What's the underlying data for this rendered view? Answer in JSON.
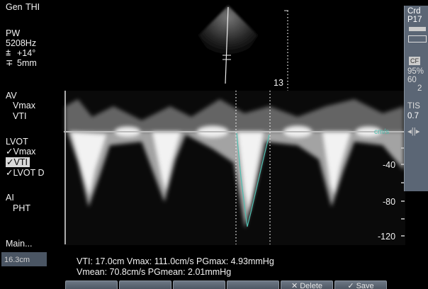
{
  "header": {
    "mode": "Gen",
    "harmonic": "THI"
  },
  "settings": {
    "mode": "PW",
    "frequency": "5208Hz",
    "angle": "+14°",
    "gate": "5mm"
  },
  "sector": {
    "depth_marker": "13"
  },
  "menu": {
    "groups": [
      {
        "title": "AV",
        "items": [
          "Vmax",
          "VTI"
        ]
      },
      {
        "title": "LVOT",
        "items": [
          "Vmax",
          "VTI",
          "LVOT D"
        ]
      },
      {
        "title": "AI",
        "items": [
          "PHT"
        ]
      }
    ],
    "main": "Main...",
    "depth": "16.3cm"
  },
  "velocity_scale": {
    "unit": "cm/s",
    "labels": [
      "-40",
      "-80",
      "-120"
    ]
  },
  "measurements": [
    "VTI: 17.0cm Vmax: 111.0cm/s PGmax: 4.93mmHg",
    "Vmean: 70.8cm/s PGmean: 2.01mmHg"
  ],
  "buttons": [
    "Delete",
    "Save"
  ],
  "right_panel": {
    "probe": "Crd",
    "preset": "P17",
    "cf": "CF",
    "gain": "95%",
    "prf": "60",
    "filter": "2",
    "tis_label": "TIS",
    "tis_value": "0.7"
  }
}
